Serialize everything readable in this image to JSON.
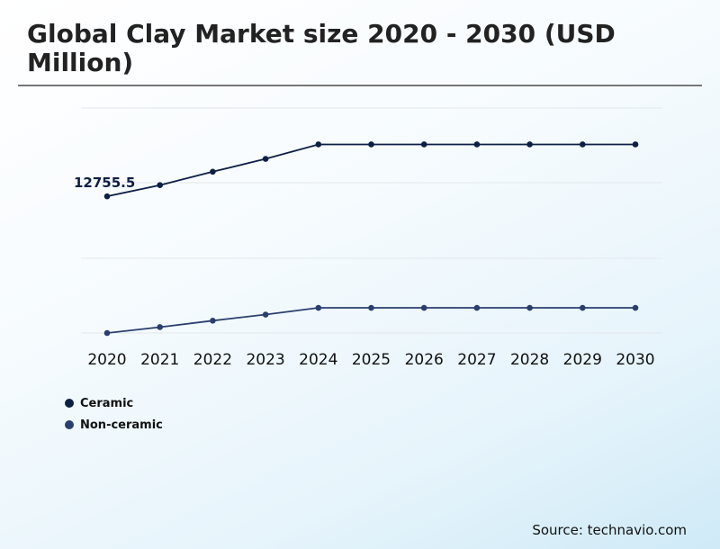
{
  "title": "Global Clay Market size 2020 - 2030 (USD Million)",
  "source": "Source: technavio.com",
  "colors": {
    "ceramic": "#0e1f45",
    "non_ceramic": "#2b3f6e",
    "grid": "#e4e8ec"
  },
  "chart_data": {
    "type": "line",
    "title": "Global Clay Market size 2020 - 2030 (USD Million)",
    "x": [
      "2020",
      "2021",
      "2022",
      "2023",
      "2024",
      "2025",
      "2026",
      "2027",
      "2028",
      "2029",
      "2030"
    ],
    "ylim": [
      0,
      21000
    ],
    "grid": true,
    "legend": "bottom-left",
    "series": [
      {
        "name": "Ceramic",
        "color": "#0e1f45",
        "values": [
          12755.5,
          13800,
          15050,
          16250,
          17600,
          17600,
          17600,
          17600,
          17600,
          17600,
          17600
        ]
      },
      {
        "name": "Non-ceramic",
        "color": "#2b3f6e",
        "values": [
          0,
          550,
          1150,
          1720,
          2350,
          2350,
          2350,
          2350,
          2350,
          2350,
          2350
        ]
      }
    ],
    "annotations": [
      {
        "series": 0,
        "index": 0,
        "text": "12755.5"
      }
    ]
  }
}
